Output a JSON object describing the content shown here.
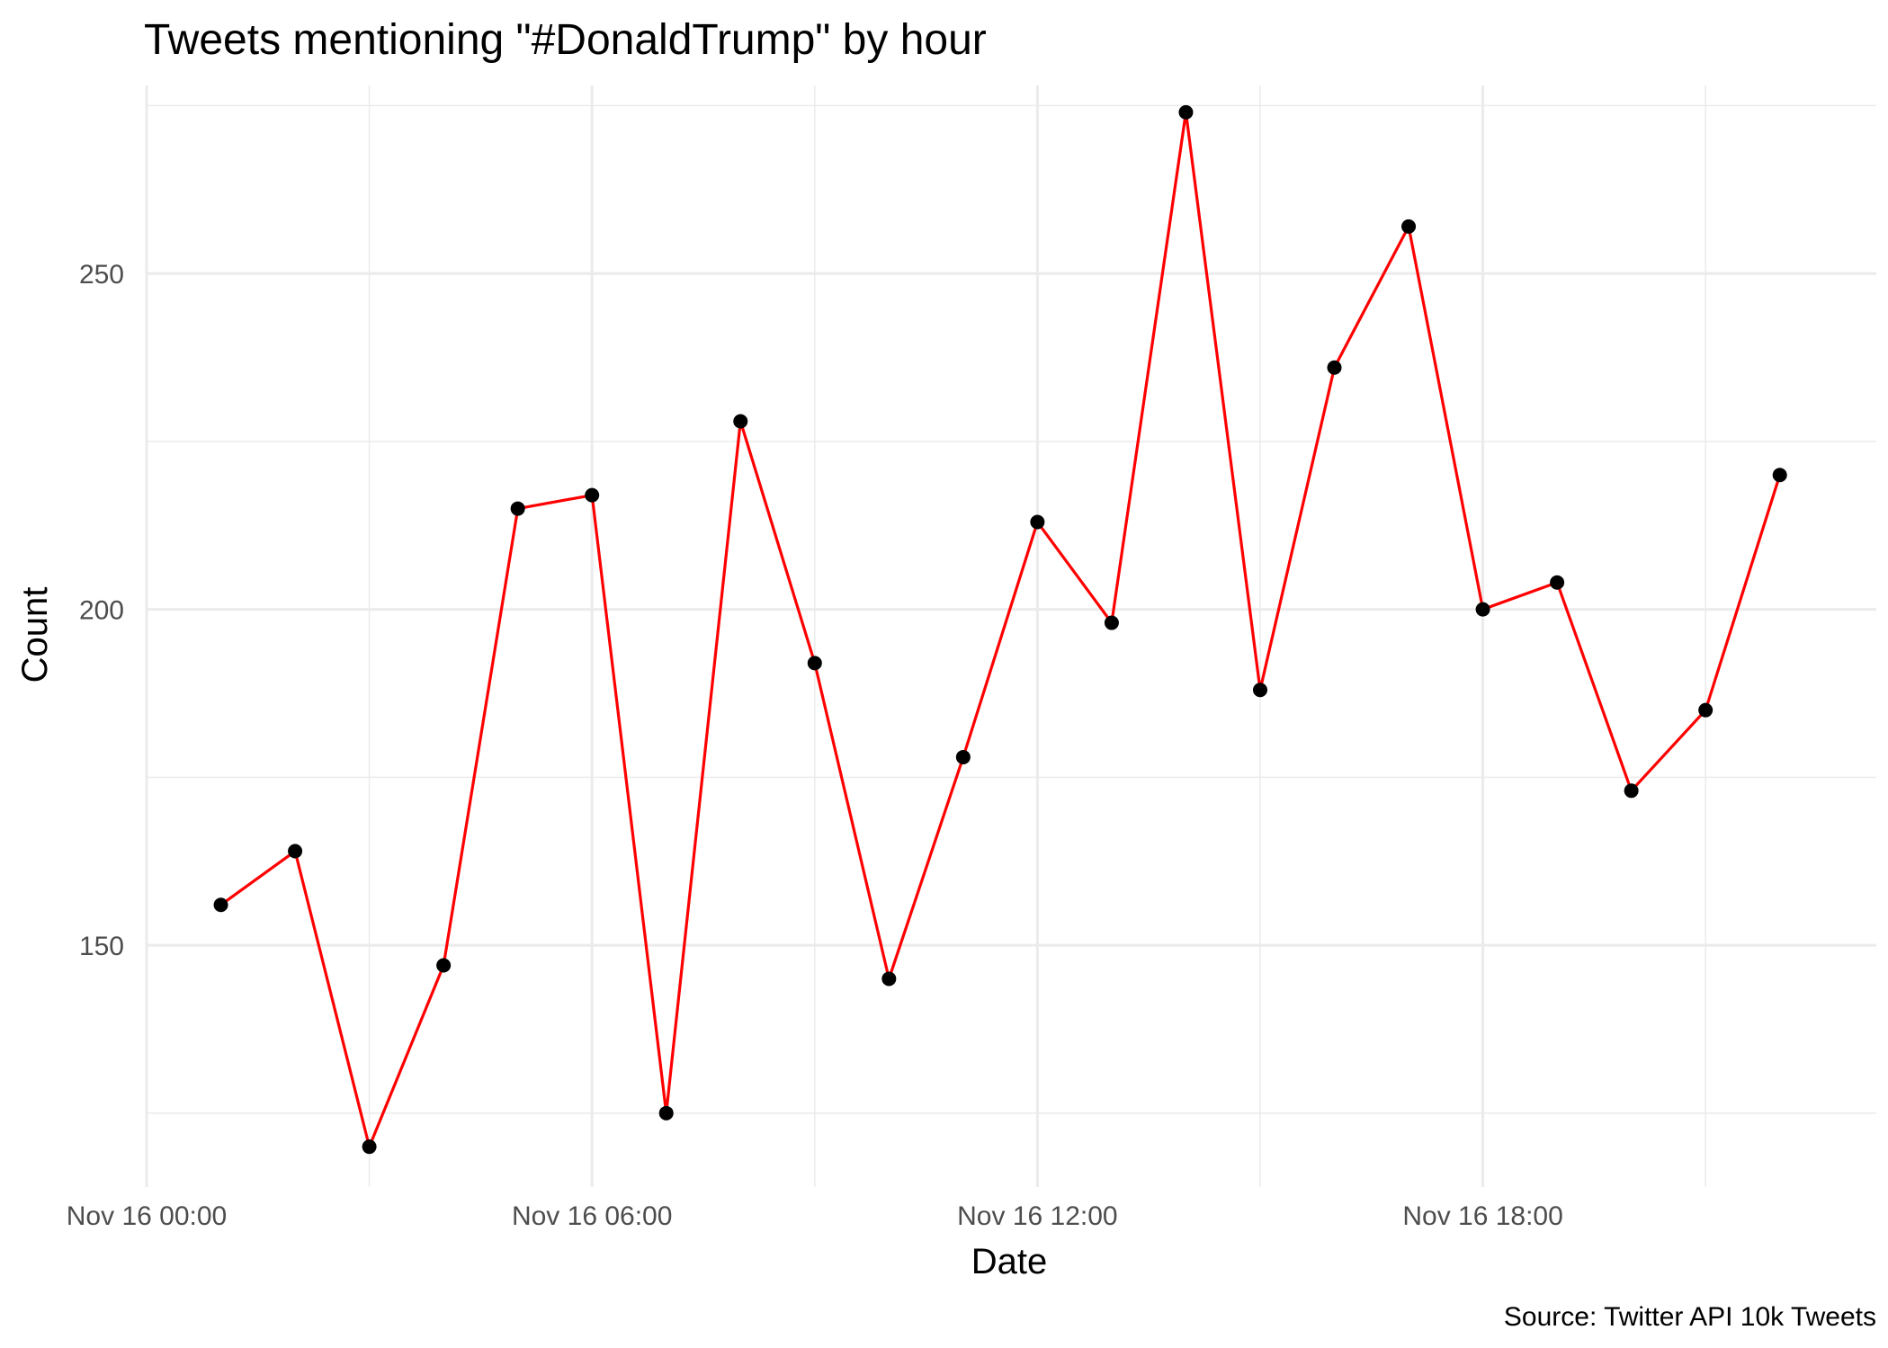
{
  "chart_data": {
    "type": "line",
    "title": "Tweets mentioning \"#DonaldTrump\" by hour",
    "xlabel": "Date",
    "ylabel": "Count",
    "caption": "Source: Twitter API 10k Tweets",
    "x_ticks": [
      "Nov 16 00:00",
      "Nov 16 06:00",
      "Nov 16 12:00",
      "Nov 16 18:00"
    ],
    "x_tick_hours": [
      0,
      6,
      12,
      18
    ],
    "y_ticks": [
      150,
      200,
      250
    ],
    "xlim": [
      0,
      23.3
    ],
    "ylim": [
      114,
      278
    ],
    "grid": true,
    "line_color": "#ff0000",
    "point_color": "#000000",
    "series": [
      {
        "x": [
          1,
          2,
          3,
          4,
          5,
          6,
          7,
          8,
          9,
          10,
          11,
          12,
          13,
          14,
          15,
          16,
          17,
          18,
          19,
          20,
          21,
          22
        ],
        "values": [
          156,
          164,
          120,
          147,
          215,
          217,
          125,
          228,
          192,
          145,
          178,
          213,
          198,
          274,
          188,
          236,
          257,
          200,
          204,
          173,
          185,
          220
        ]
      }
    ]
  }
}
